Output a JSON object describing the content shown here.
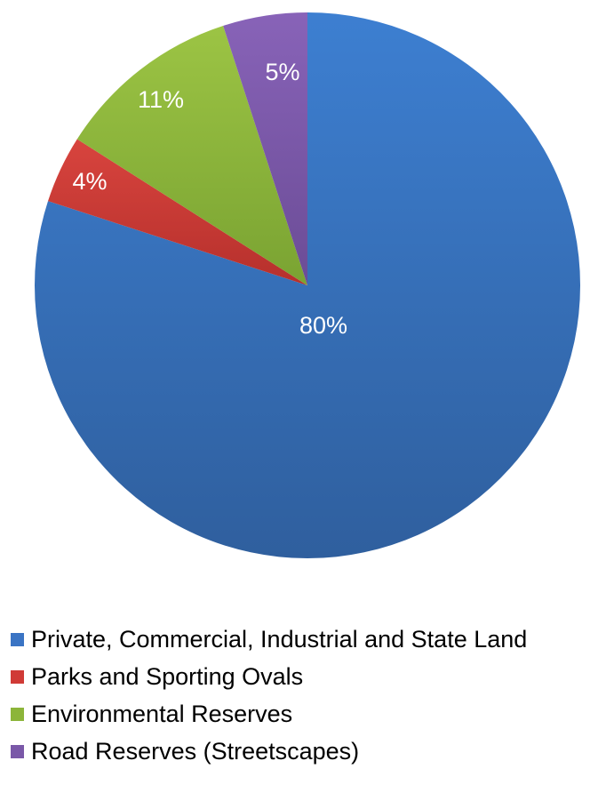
{
  "chart_data": {
    "type": "pie",
    "start_angle_deg": 0,
    "direction": "clockwise",
    "slices": [
      {
        "name": "Private, Commercial, Industrial and State Land",
        "value": 80,
        "label": "80%",
        "color": "#3a74c4"
      },
      {
        "name": "Parks and Sporting Ovals",
        "value": 4,
        "label": "4%",
        "color": "#d03a36"
      },
      {
        "name": "Environmental Reserves",
        "value": 11,
        "label": "11%",
        "color": "#8cb53a"
      },
      {
        "name": "Road Reserves (Streetscapes)",
        "value": 5,
        "label": "5%",
        "color": "#7a58a8"
      }
    ],
    "legend_position": "bottom"
  }
}
